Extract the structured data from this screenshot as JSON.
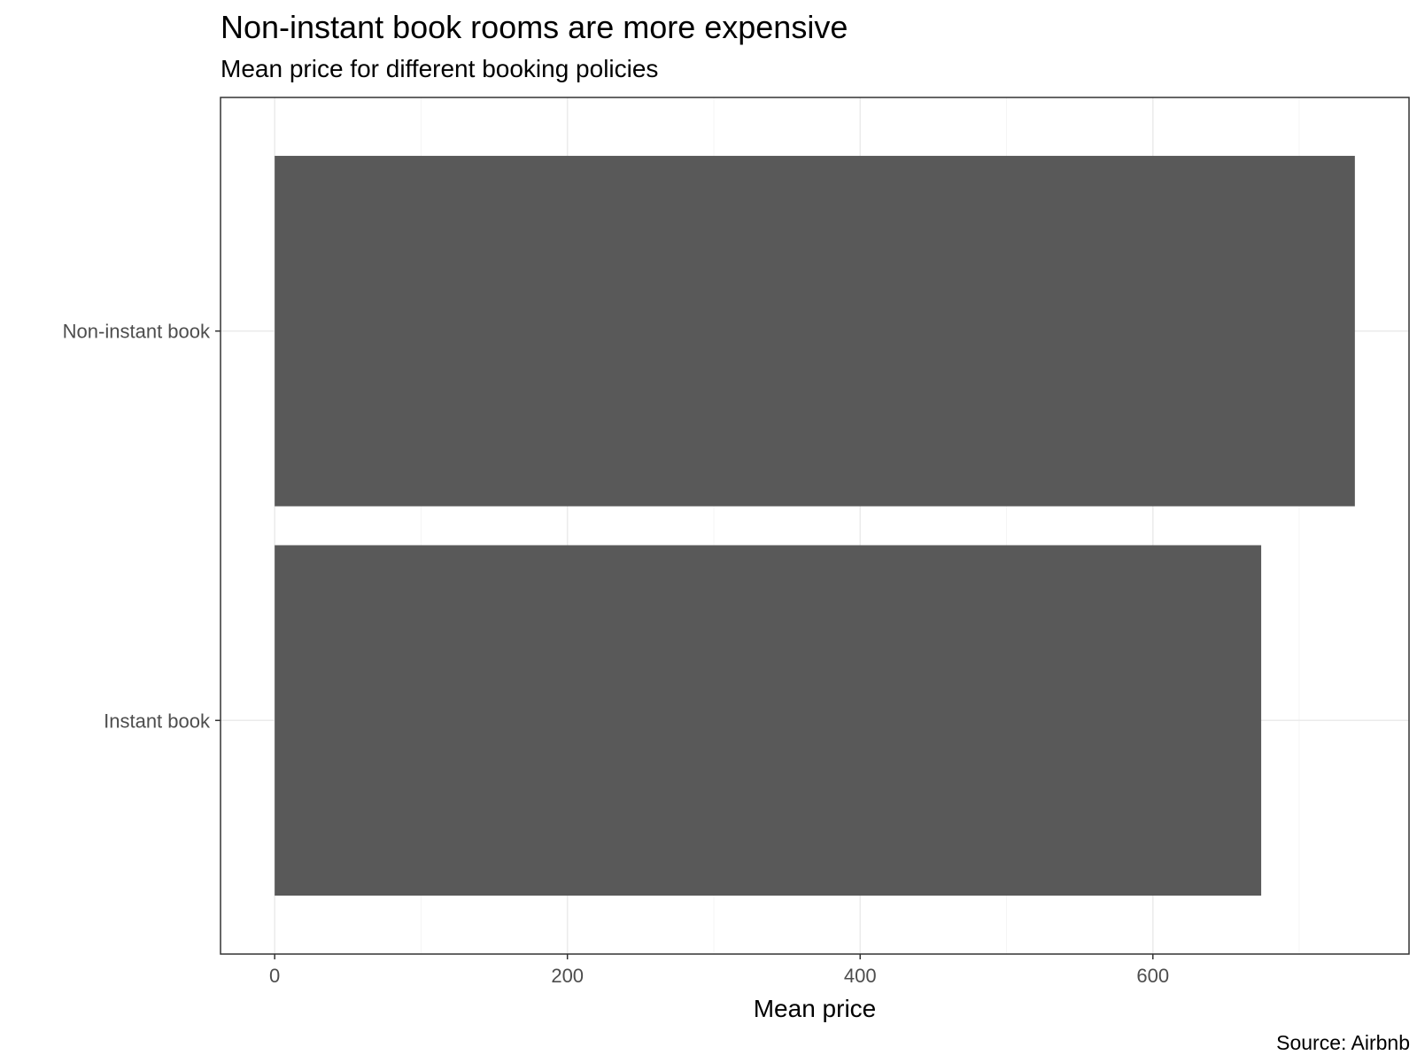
{
  "chart_data": {
    "type": "bar",
    "orientation": "horizontal",
    "title": "Non-instant book rooms are more expensive",
    "subtitle": "Mean price for different booking policies",
    "caption": "Source: Airbnb",
    "xlabel": "Mean price",
    "ylabel": "",
    "categories": [
      "Non-instant book",
      "Instant book"
    ],
    "values": [
      738,
      674
    ],
    "xlim": [
      -37,
      775
    ],
    "xticks": [
      0,
      200,
      400,
      600
    ],
    "xtick_labels": [
      "0",
      "200",
      "400",
      "600"
    ],
    "grid": true,
    "legend": "none",
    "colors": {
      "bar": "#595959",
      "grid_major": "#ebebeb",
      "grid_minor": "#f5f5f5",
      "panel_border": "#333333",
      "tick_label": "#4d4d4d"
    }
  }
}
